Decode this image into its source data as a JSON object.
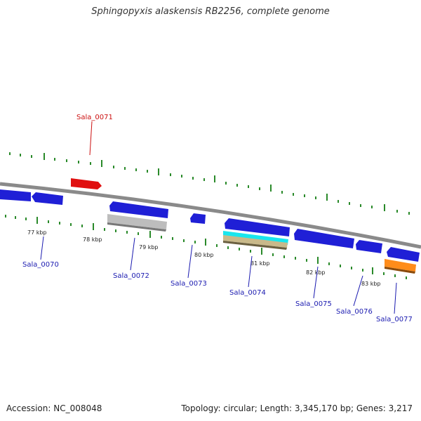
{
  "title": "Sphingopyxis alaskensis RB2256, complete genome",
  "accession_label": "Accession: NC_008048",
  "topology_label": "Topology: circular; Length: 3,345,170 bp; Genes: 3,217",
  "colors": {
    "backbone": "#8a8a8a",
    "gene_forward": "#1f1fd6",
    "gene_reverse": "#1f1fd6",
    "highlight": "#e01010",
    "tick": "#2a8a2a",
    "label_blue": "#1a1ab0",
    "label_red": "#cc1010",
    "grey_feature": "#bdbdbd",
    "cyan_feature": "#19e6ee",
    "tan_feature": "#c9b98a",
    "orange_feature": "#ff8c1a"
  },
  "scale_labels": [
    "77 kbp",
    "78 kbp",
    "79 kbp",
    "80 kbp",
    "81 kbp",
    "82 kbp",
    "83 kbp"
  ],
  "genes": [
    {
      "id": "Sala_0070",
      "color": "blue"
    },
    {
      "id": "Sala_0071",
      "color": "red"
    },
    {
      "id": "Sala_0072",
      "color": "blue"
    },
    {
      "id": "Sala_0073",
      "color": "blue"
    },
    {
      "id": "Sala_0074",
      "color": "blue"
    },
    {
      "id": "Sala_0075",
      "color": "blue"
    },
    {
      "id": "Sala_0076",
      "color": "blue"
    },
    {
      "id": "Sala_0077",
      "color": "blue"
    }
  ]
}
